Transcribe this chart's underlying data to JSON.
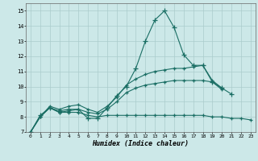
{
  "xlabel": "Humidex (Indice chaleur)",
  "bg_color": "#cce8e8",
  "grid_color": "#aacccc",
  "line_color": "#1a6e64",
  "xlim": [
    -0.5,
    23.5
  ],
  "ylim": [
    7,
    15.5
  ],
  "xticks": [
    0,
    1,
    2,
    3,
    4,
    5,
    6,
    7,
    8,
    9,
    10,
    11,
    12,
    13,
    14,
    15,
    16,
    17,
    18,
    19,
    20,
    21,
    22,
    23
  ],
  "yticks": [
    7,
    8,
    9,
    10,
    11,
    12,
    13,
    14,
    15
  ],
  "line1_x": [
    0,
    1,
    2,
    3,
    4,
    5,
    6,
    7,
    8,
    9,
    10,
    11,
    12,
    13,
    14,
    15,
    16,
    17,
    18,
    19,
    20,
    21
  ],
  "line1_y": [
    7.0,
    8.1,
    8.6,
    8.4,
    8.5,
    8.5,
    7.9,
    7.9,
    8.6,
    9.4,
    10.0,
    11.2,
    13.0,
    14.4,
    15.0,
    13.9,
    12.1,
    11.4,
    11.4,
    10.3,
    9.9,
    9.5
  ],
  "line2_x": [
    0,
    1,
    2,
    3,
    4,
    5,
    6,
    7,
    8,
    9,
    10,
    11,
    12,
    13,
    14,
    15,
    16,
    17,
    18,
    19,
    20
  ],
  "line2_y": [
    7.0,
    8.0,
    8.7,
    8.5,
    8.7,
    8.8,
    8.5,
    8.3,
    8.7,
    9.3,
    10.1,
    10.5,
    10.8,
    11.0,
    11.1,
    11.2,
    11.2,
    11.3,
    11.4,
    10.4,
    9.9
  ],
  "line3_x": [
    0,
    1,
    2,
    3,
    4,
    5,
    6,
    7,
    8,
    9,
    10,
    11,
    12,
    13,
    14,
    15,
    16,
    17,
    18,
    19,
    20
  ],
  "line3_y": [
    7.0,
    8.0,
    8.6,
    8.3,
    8.4,
    8.5,
    8.3,
    8.2,
    8.5,
    9.0,
    9.6,
    9.9,
    10.1,
    10.2,
    10.3,
    10.4,
    10.4,
    10.4,
    10.4,
    10.3,
    9.8
  ],
  "line4_x": [
    0,
    1,
    2,
    3,
    4,
    5,
    6,
    7,
    8,
    9,
    10,
    11,
    12,
    13,
    14,
    15,
    16,
    17,
    18,
    19,
    20,
    21,
    22,
    23
  ],
  "line4_y": [
    7.0,
    8.0,
    8.6,
    8.3,
    8.3,
    8.3,
    8.1,
    8.0,
    8.1,
    8.1,
    8.1,
    8.1,
    8.1,
    8.1,
    8.1,
    8.1,
    8.1,
    8.1,
    8.1,
    8.0,
    8.0,
    7.9,
    7.9,
    7.8
  ]
}
